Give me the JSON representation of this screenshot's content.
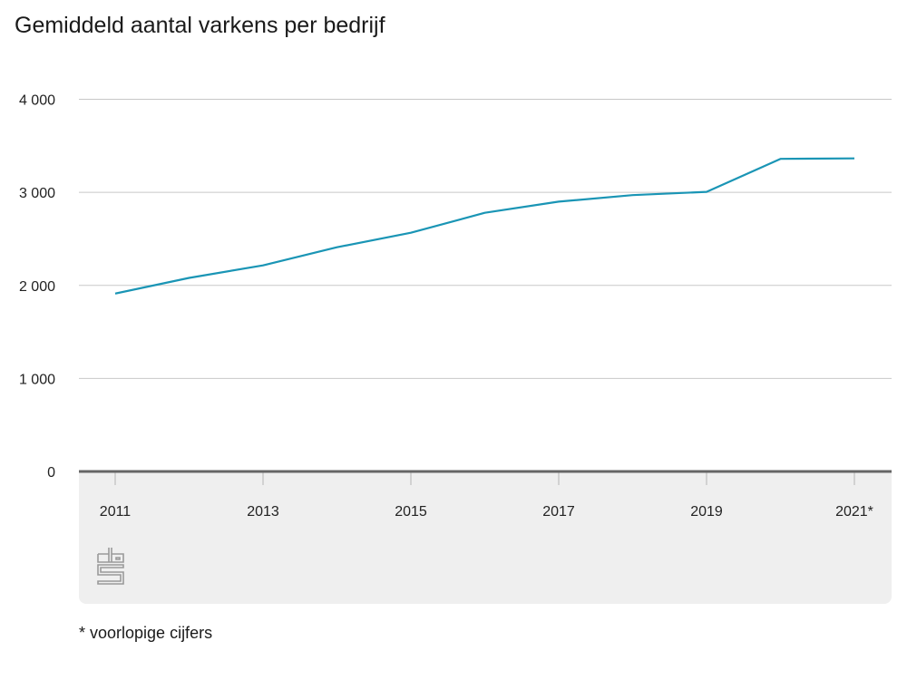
{
  "title": "Gemiddeld aantal varkens per bedrijf",
  "footnote": "* voorlopige cijfers",
  "logo": "cbs-logo",
  "colors": {
    "line": "#1a95b5",
    "grid": "#c8c8c8",
    "axis": "#666666",
    "panel": "#efefef"
  },
  "chart_data": {
    "type": "line",
    "title": "Gemiddeld aantal varkens per bedrijf",
    "xlabel": "",
    "ylabel": "",
    "x": [
      2011,
      2012,
      2013,
      2014,
      2015,
      2016,
      2017,
      2018,
      2019,
      2020,
      2021
    ],
    "series": [
      {
        "name": "Gemiddeld aantal varkens per bedrijf",
        "values": [
          1912,
          2080,
          2215,
          2410,
          2566,
          2780,
          2900,
          2970,
          3005,
          3360,
          3365
        ]
      }
    ],
    "ylim": [
      0,
      4000
    ],
    "yticks": [
      0,
      1000,
      2000,
      3000,
      4000
    ],
    "ytick_labels": [
      "0",
      "1 000",
      "2 000",
      "3 000",
      "4 000"
    ],
    "xticks": [
      2011,
      2013,
      2015,
      2017,
      2019,
      2021
    ],
    "xtick_labels": [
      "2011",
      "2013",
      "2015",
      "2017",
      "2019",
      "2021*"
    ],
    "grid": true,
    "legend": "none",
    "annotations": [
      "* voorlopige cijfers"
    ]
  }
}
